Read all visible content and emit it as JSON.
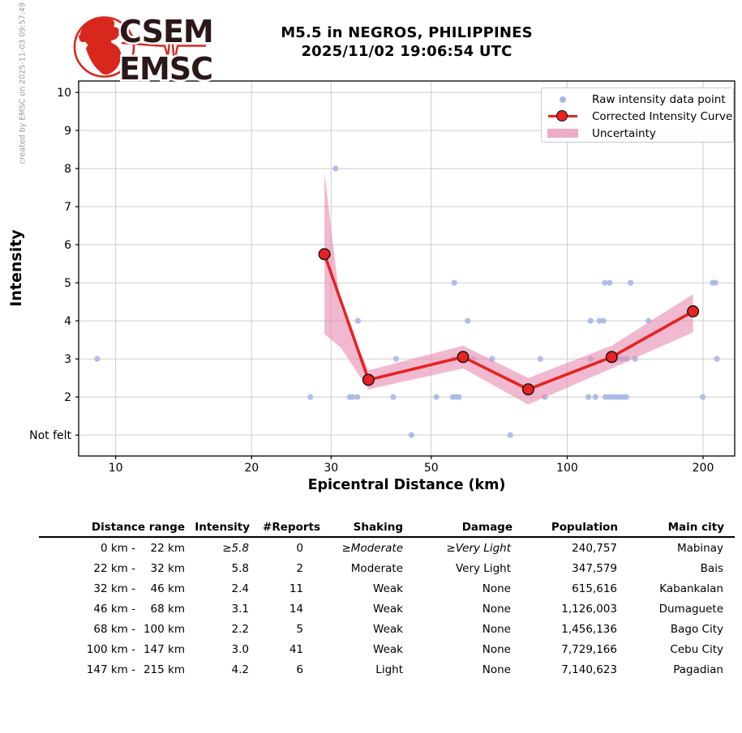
{
  "meta": {
    "created_text": "created by EMSC on 2025-11-03 09:57:49 UTC"
  },
  "logo": {
    "line1": "CSEM",
    "line2": "EMSC"
  },
  "header": {
    "title_line1": "M5.5 in NEGROS, PHILIPPINES",
    "title_line2": "2025/11/02 19:06:54 UTC"
  },
  "chart_data": {
    "type": "scatter",
    "xlabel": "Epicentral Distance (km)",
    "ylabel": "Intensity",
    "x_scale": "log",
    "x_ticks": [
      10,
      20,
      30,
      50,
      100,
      200
    ],
    "x_range": [
      8.28,
      235
    ],
    "y_range": [
      0.45,
      10.3
    ],
    "y_ticks": [
      {
        "value": 10,
        "label": "10"
      },
      {
        "value": 9,
        "label": "9"
      },
      {
        "value": 8,
        "label": "8"
      },
      {
        "value": 7,
        "label": "7"
      },
      {
        "value": 6,
        "label": "6"
      },
      {
        "value": 5,
        "label": "5"
      },
      {
        "value": 4,
        "label": "4"
      },
      {
        "value": 3,
        "label": "3"
      },
      {
        "value": 2,
        "label": "2"
      },
      {
        "value": 1,
        "label": "Not felt"
      }
    ],
    "grid": true,
    "legend": {
      "position": "upper right",
      "entries": [
        "Raw intensity data point",
        "Corrected Intensity Curve",
        "Uncertainty"
      ]
    },
    "series": [
      {
        "name": "Raw intensity data point",
        "type": "scatter",
        "color": "#a9b7e6",
        "points": [
          [
            9.1,
            3
          ],
          [
            27,
            2
          ],
          [
            30.7,
            8
          ],
          [
            33,
            2
          ],
          [
            33.5,
            2
          ],
          [
            34.3,
            2
          ],
          [
            34.4,
            4
          ],
          [
            41.2,
            2
          ],
          [
            41.8,
            3
          ],
          [
            45.2,
            1
          ],
          [
            51.3,
            2
          ],
          [
            55.8,
            2
          ],
          [
            56,
            3
          ],
          [
            56.2,
            5
          ],
          [
            56.8,
            2
          ],
          [
            57.6,
            2
          ],
          [
            60.2,
            4
          ],
          [
            62,
            3
          ],
          [
            68.2,
            3
          ],
          [
            74.8,
            1
          ],
          [
            87.2,
            3
          ],
          [
            89.2,
            2
          ],
          [
            111.4,
            2
          ],
          [
            112.7,
            3
          ],
          [
            112.7,
            4
          ],
          [
            115.5,
            2
          ],
          [
            117.9,
            4
          ],
          [
            120.3,
            4
          ],
          [
            121.2,
            5
          ],
          [
            121.6,
            2
          ],
          [
            123.8,
            2
          ],
          [
            124.2,
            5
          ],
          [
            126.1,
            2
          ],
          [
            128.4,
            2
          ],
          [
            129,
            3
          ],
          [
            130.8,
            2
          ],
          [
            132,
            3
          ],
          [
            133.2,
            2
          ],
          [
            135.2,
            2
          ],
          [
            135.4,
            3
          ],
          [
            138.2,
            5
          ],
          [
            141.4,
            3
          ],
          [
            151.5,
            4
          ],
          [
            199.7,
            2
          ],
          [
            210,
            5
          ],
          [
            213,
            5
          ],
          [
            214.6,
            3
          ]
        ]
      },
      {
        "name": "Corrected Intensity Curve",
        "type": "line+marker",
        "color": "#e62320",
        "points": [
          [
            29,
            5.75
          ],
          [
            36.3,
            2.45
          ],
          [
            58.8,
            3.05
          ],
          [
            82,
            2.2
          ],
          [
            125.5,
            3.05
          ],
          [
            190,
            4.25
          ]
        ]
      },
      {
        "name": "Uncertainty",
        "type": "band",
        "color": "#e78bb1",
        "x": [
          29,
          31.5,
          36.3,
          58.8,
          82,
          125.5,
          190
        ],
        "upper": [
          7.9,
          4.35,
          2.7,
          3.35,
          2.5,
          3.35,
          4.7
        ],
        "lower": [
          3.65,
          3.3,
          2.2,
          2.75,
          1.8,
          2.75,
          3.7
        ]
      }
    ],
    "colors": {
      "grid": "#cccccc",
      "axis": "#000000"
    }
  },
  "table": {
    "headers": [
      "Distance range",
      "Intensity",
      "#Reports",
      "Shaking",
      "Damage",
      "Population",
      "Main city"
    ],
    "rows": [
      {
        "cells": [
          "0 km -",
          "22 km",
          "≥5.8",
          "0",
          "≥Moderate",
          "≥Very Light",
          "240,757",
          "Mabinay"
        ],
        "italic": [
          2,
          4,
          5
        ]
      },
      {
        "cells": [
          "22 km -",
          "32 km",
          "5.8",
          "2",
          "Moderate",
          "Very Light",
          "347,579",
          "Bais"
        ],
        "italic": []
      },
      {
        "cells": [
          "32 km -",
          "46 km",
          "2.4",
          "11",
          "Weak",
          "None",
          "615,616",
          "Kabankalan"
        ],
        "italic": []
      },
      {
        "cells": [
          "46 km -",
          "68 km",
          "3.1",
          "14",
          "Weak",
          "None",
          "1,126,003",
          "Dumaguete"
        ],
        "italic": []
      },
      {
        "cells": [
          "68 km -",
          "100 km",
          "2.2",
          "5",
          "Weak",
          "None",
          "1,456,136",
          "Bago City"
        ],
        "italic": []
      },
      {
        "cells": [
          "100 km -",
          "147 km",
          "3.0",
          "41",
          "Weak",
          "None",
          "7,729,166",
          "Cebu City"
        ],
        "italic": []
      },
      {
        "cells": [
          "147 km -",
          "215 km",
          "4.2",
          "6",
          "Light",
          "None",
          "7,140,623",
          "Pagadian"
        ],
        "italic": []
      }
    ]
  }
}
